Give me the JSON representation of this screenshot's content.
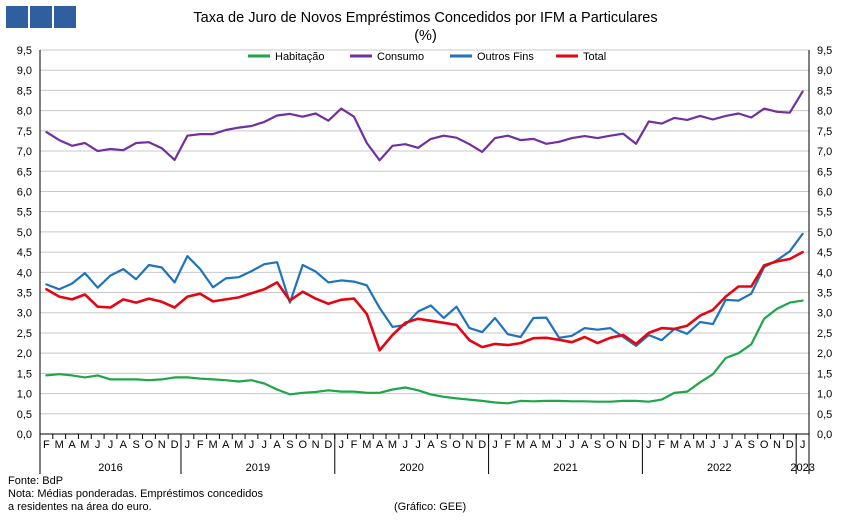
{
  "header": {
    "logo_alt": "GEE",
    "title": "Taxa de Juro de Novos Empréstimos Concedidos por IFM a Particulares",
    "unit": "(%)"
  },
  "footer": {
    "source": "Fonte: BdP",
    "note_line1": "Nota: Médias ponderadas. Empréstimos concedidos",
    "note_line2": "a residentes na área do euro.",
    "credit": "(Gráfico: GEE)"
  },
  "chart_data": {
    "type": "line",
    "title": "Taxa de Juro de Novos Empréstimos Concedidos por IFM a Particulares",
    "subtitle": "(%)",
    "ylim": [
      0,
      9.5
    ],
    "y_step": 0.5,
    "y_tick_labels": [
      "0,0",
      "0,5",
      "1,0",
      "1,5",
      "2,0",
      "2,5",
      "3,0",
      "3,5",
      "4,0",
      "4,5",
      "5,0",
      "5,5",
      "6,0",
      "6,5",
      "7,0",
      "7,5",
      "8,0",
      "8,5",
      "9,0",
      "9,5"
    ],
    "y_axis_both_sides": true,
    "grid": true,
    "legend_position": "top",
    "month_labels": [
      "F",
      "M",
      "A",
      "M",
      "J",
      "J",
      "A",
      "S",
      "O",
      "N",
      "D",
      "J",
      "F",
      "M",
      "A",
      "M",
      "J",
      "J",
      "A",
      "S",
      "O",
      "N",
      "D",
      "J",
      "F",
      "M",
      "A",
      "M",
      "J",
      "J",
      "A",
      "S",
      "O",
      "N",
      "D",
      "J",
      "F",
      "M",
      "A",
      "M",
      "J",
      "J",
      "A",
      "S",
      "O",
      "N",
      "D",
      "J",
      "F",
      "M",
      "A",
      "M",
      "J",
      "J",
      "A",
      "S",
      "O",
      "N",
      "D",
      "J"
    ],
    "year_labels": [
      {
        "label": "2016",
        "start": 0,
        "end": 10
      },
      {
        "label": "2019",
        "start": 11,
        "end": 22
      },
      {
        "label": "2020",
        "start": 23,
        "end": 34
      },
      {
        "label": "2021",
        "start": 35,
        "end": 46
      },
      {
        "label": "2022",
        "start": 47,
        "end": 58
      },
      {
        "label": "2023",
        "start": 59,
        "end": 59
      }
    ],
    "series": [
      {
        "name": "Habitação",
        "color": "#1fa64a",
        "values": [
          1.45,
          1.48,
          1.45,
          1.4,
          1.45,
          1.35,
          1.35,
          1.35,
          1.33,
          1.35,
          1.4,
          1.4,
          1.37,
          1.35,
          1.33,
          1.3,
          1.33,
          1.25,
          1.1,
          0.98,
          1.02,
          1.04,
          1.08,
          1.05,
          1.05,
          1.02,
          1.02,
          1.1,
          1.15,
          1.08,
          0.98,
          0.92,
          0.88,
          0.85,
          0.82,
          0.78,
          0.76,
          0.82,
          0.81,
          0.82,
          0.82,
          0.81,
          0.81,
          0.8,
          0.8,
          0.82,
          0.82,
          0.8,
          0.85,
          1.02,
          1.05,
          1.28,
          1.48,
          1.88,
          2.0,
          2.22,
          2.85,
          3.1,
          3.25,
          3.3
        ]
      },
      {
        "name": "Consumo",
        "color": "#7030a0",
        "values": [
          7.47,
          7.27,
          7.13,
          7.2,
          7.0,
          7.05,
          7.02,
          7.2,
          7.22,
          7.07,
          6.78,
          7.38,
          7.42,
          7.42,
          7.52,
          7.58,
          7.62,
          7.72,
          7.88,
          7.92,
          7.85,
          7.93,
          7.75,
          8.05,
          7.85,
          7.2,
          6.77,
          7.13,
          7.17,
          7.08,
          7.3,
          7.38,
          7.33,
          7.17,
          6.98,
          7.32,
          7.38,
          7.27,
          7.3,
          7.18,
          7.23,
          7.32,
          7.37,
          7.32,
          7.38,
          7.43,
          7.18,
          7.73,
          7.68,
          7.82,
          7.77,
          7.87,
          7.78,
          7.87,
          7.93,
          7.83,
          8.05,
          7.97,
          7.95,
          8.47
        ]
      },
      {
        "name": "Outros Fins",
        "color": "#1f73bd",
        "values": [
          3.7,
          3.58,
          3.72,
          3.98,
          3.62,
          3.92,
          4.08,
          3.83,
          4.18,
          4.12,
          3.75,
          4.4,
          4.08,
          3.63,
          3.85,
          3.88,
          4.03,
          4.2,
          4.25,
          3.25,
          4.18,
          4.02,
          3.75,
          3.8,
          3.77,
          3.68,
          3.12,
          2.65,
          2.7,
          3.03,
          3.18,
          2.87,
          3.15,
          2.62,
          2.52,
          2.87,
          2.47,
          2.4,
          2.87,
          2.88,
          2.38,
          2.43,
          2.62,
          2.58,
          2.62,
          2.4,
          2.18,
          2.45,
          2.32,
          2.6,
          2.48,
          2.77,
          2.72,
          3.32,
          3.3,
          3.47,
          4.13,
          4.3,
          4.52,
          4.95
        ]
      },
      {
        "name": "Total",
        "color": "#e30613",
        "values": [
          3.58,
          3.4,
          3.33,
          3.45,
          3.15,
          3.13,
          3.33,
          3.25,
          3.35,
          3.27,
          3.13,
          3.4,
          3.47,
          3.28,
          3.33,
          3.38,
          3.48,
          3.58,
          3.75,
          3.3,
          3.52,
          3.35,
          3.22,
          3.32,
          3.35,
          2.97,
          2.07,
          2.45,
          2.75,
          2.85,
          2.8,
          2.75,
          2.7,
          2.32,
          2.15,
          2.23,
          2.2,
          2.25,
          2.37,
          2.38,
          2.33,
          2.27,
          2.4,
          2.25,
          2.38,
          2.45,
          2.23,
          2.5,
          2.62,
          2.6,
          2.68,
          2.93,
          3.07,
          3.4,
          3.65,
          3.65,
          4.17,
          4.27,
          4.33,
          4.5
        ]
      }
    ]
  }
}
